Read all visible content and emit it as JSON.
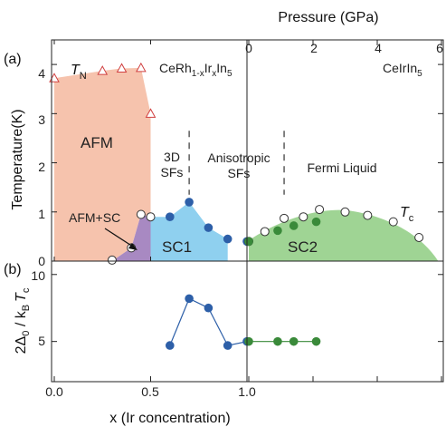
{
  "chart_data": [
    {
      "type": "area",
      "panel_label": "(a)",
      "xlabel": "x (Ir concentration)",
      "ylabel": "Temperature(K)",
      "top_xlabel": "Pressure (GPa)",
      "x_left": {
        "range": [
          0.0,
          1.0
        ],
        "ticks": [
          "0.0",
          "0.5",
          "1.0"
        ]
      },
      "x_pressure": {
        "range": [
          0,
          6
        ],
        "ticks": [
          "0",
          "2",
          "4",
          "6"
        ]
      },
      "ylim": [
        0,
        4.5
      ],
      "yticks": [
        "0",
        "1",
        "2",
        "3",
        "4"
      ],
      "panel_titles": {
        "left_prefix": "CeRh",
        "left_sub1": "1-x",
        "left_mid": "Ir",
        "left_sub2": "x",
        "left_suffix": "In",
        "left_sub3": "5",
        "right": "CeIrIn",
        "right_sub": "5"
      },
      "series_labels": {
        "tn_main": "T",
        "tn_sub": "N",
        "tc_main": "T",
        "tc_sub": "c"
      },
      "regions": {
        "afm": "AFM",
        "afm_sc": "AFM+SC",
        "sc1": "SC1",
        "sc2": "SC2",
        "sfs_3d_1": "3D",
        "sfs_3d_2": "SFs",
        "aniso_1": "Anisotropic",
        "aniso_2": "SFs",
        "fermi": "Fermi Liquid"
      },
      "series": [
        {
          "kind": "TN_triangles",
          "x": [
            0.0,
            0.25,
            0.35,
            0.45,
            0.5
          ],
          "y": [
            3.72,
            3.87,
            3.92,
            3.93,
            3.0
          ]
        },
        {
          "kind": "Tc_open_circles",
          "x": [
            0.3,
            0.4,
            0.45,
            0.5
          ],
          "y": [
            0.02,
            0.27,
            0.95,
            0.9
          ]
        },
        {
          "kind": "Tc_filled_circles_x",
          "x": [
            0.6,
            0.7,
            0.8,
            0.9,
            1.0
          ],
          "y": [
            0.9,
            1.2,
            0.68,
            0.45,
            0.4
          ]
        },
        {
          "kind": "Tc_open_circles_P",
          "p": [
            0.0,
            0.5,
            1.1,
            1.7,
            2.2,
            3.0,
            3.7,
            4.5,
            5.3
          ],
          "y": [
            0.4,
            0.6,
            0.87,
            0.9,
            1.05,
            1.0,
            0.93,
            0.8,
            0.48
          ]
        },
        {
          "kind": "Tc_filled_circles_P",
          "p": [
            0.0,
            0.9,
            1.4,
            2.1
          ],
          "y": [
            0.4,
            0.62,
            0.72,
            0.8
          ]
        }
      ],
      "dashed_lines": [
        {
          "x": 0.7
        },
        {
          "p": 1.1
        }
      ]
    },
    {
      "type": "line",
      "panel_label": "(b)",
      "ylabel_main": "2Δ",
      "ylabel_sub0": "0",
      "ylabel_mid": " / k",
      "ylabel_subB": "B",
      "ylabel_T": "T",
      "ylabel_subc": "c",
      "ylim": [
        2,
        11
      ],
      "yticks": [
        "5",
        "10"
      ],
      "series": [
        {
          "name": "x",
          "x": [
            0.6,
            0.7,
            0.8,
            0.9,
            1.0
          ],
          "y": [
            4.7,
            8.2,
            7.5,
            4.7,
            5.0
          ],
          "color": "#2d5fa8"
        },
        {
          "name": "pressure",
          "p": [
            0.0,
            0.9,
            1.4,
            2.1
          ],
          "y": [
            5.0,
            5.0,
            5.0,
            5.0
          ],
          "color": "#3a8a3a"
        }
      ]
    }
  ]
}
